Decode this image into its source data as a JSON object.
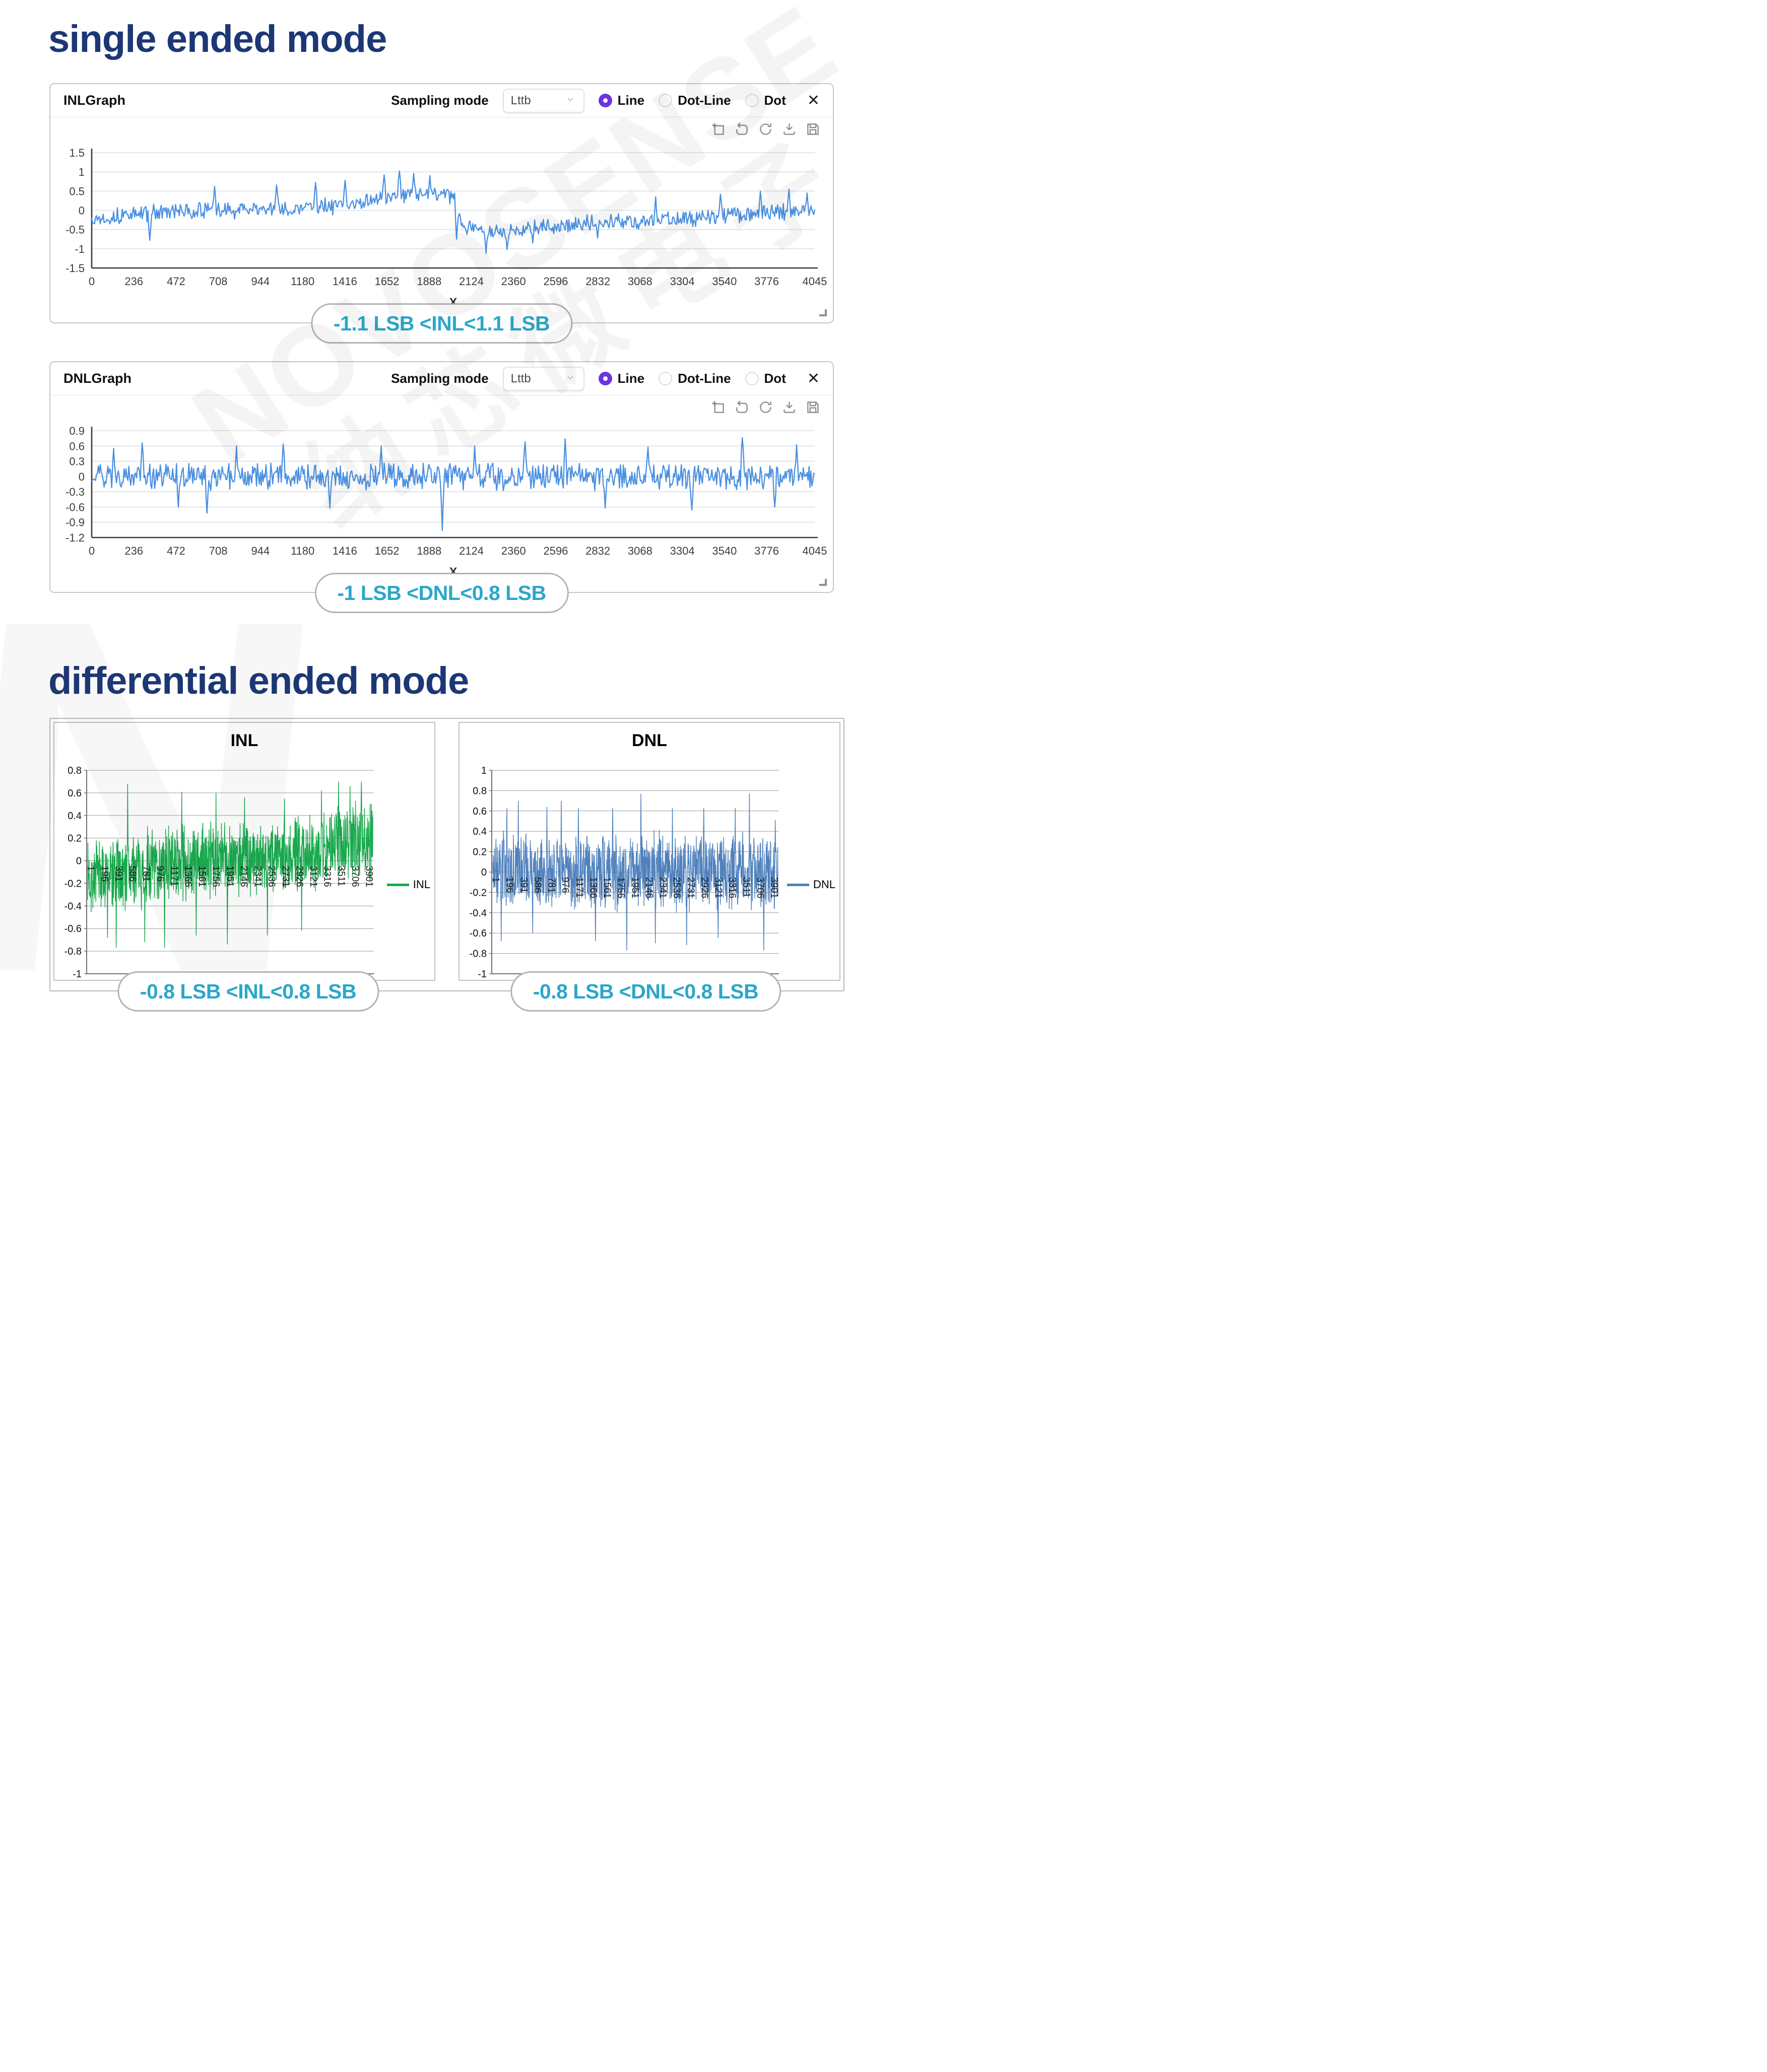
{
  "page": {
    "section1_title": "single ended mode",
    "section2_title": "differential ended mode",
    "watermark_line1": "NOVOSENSE",
    "watermark_line2": "纳芯微电子",
    "watermark_letter": "N"
  },
  "icons": {
    "close": "✕",
    "toolbar": [
      "zoom-box",
      "undo-zoom",
      "refresh",
      "download",
      "save"
    ]
  },
  "panels": [
    {
      "title": "INLGraph",
      "sampling_label": "Sampling mode",
      "dropdown_value": "Lttb",
      "radios": [
        {
          "label": "Line",
          "selected": true
        },
        {
          "label": "Dot-Line",
          "selected": false
        },
        {
          "label": "Dot",
          "selected": false
        }
      ],
      "caption": "-1.1 LSB <INL<1.1 LSB"
    },
    {
      "title": "DNLGraph",
      "sampling_label": "Sampling mode",
      "dropdown_value": "Lttb",
      "radios": [
        {
          "label": "Line",
          "selected": true
        },
        {
          "label": "Dot-Line",
          "selected": false
        },
        {
          "label": "Dot",
          "selected": false
        }
      ],
      "caption": "-1 LSB <DNL<0.8 LSB"
    }
  ],
  "diff": {
    "inl_caption": "-0.8 LSB <INL<0.8 LSB",
    "dnl_caption": "-0.8 LSB <DNL<0.8 LSB"
  },
  "chart_data": [
    {
      "id": "inl_top",
      "type": "line",
      "title": "INLGraph",
      "series_name": "INL",
      "color": "#4a90e2",
      "xlabel": "X",
      "xlim": [
        0,
        4045
      ],
      "x_ticks": [
        0,
        236,
        472,
        708,
        944,
        1180,
        1416,
        1652,
        1888,
        2124,
        2360,
        2596,
        2832,
        3068,
        3304,
        3540,
        3776,
        4045
      ],
      "ylim": [
        -1.5,
        1.5
      ],
      "y_ticks": [
        1.5,
        1,
        0.5,
        0,
        -0.5,
        -1,
        -1.5
      ],
      "grid": true,
      "legend_position": "none",
      "description": "INL noise: ~0±0.3 rising to +0.5 with peaks to 1.0 near x=1900, step down to -0.6 (lows -1.1) after x=2000, recovering toward 0 by x=4045",
      "series": {
        "points": 760,
        "seed": 13,
        "amplitude": 0.25,
        "clamp": [
          -1.15,
          1.05
        ],
        "base_points": [
          [
            0,
            -0.22
          ],
          [
            0.05,
            -0.12
          ],
          [
            0.1,
            -0.05
          ],
          [
            0.18,
            0.0
          ],
          [
            0.27,
            0.05
          ],
          [
            0.34,
            0.12
          ],
          [
            0.4,
            0.3
          ],
          [
            0.45,
            0.4
          ],
          [
            0.49,
            0.45
          ],
          [
            0.503,
            0.3
          ],
          [
            0.512,
            -0.45
          ],
          [
            0.54,
            -0.55
          ],
          [
            0.58,
            -0.55
          ],
          [
            0.63,
            -0.42
          ],
          [
            0.7,
            -0.32
          ],
          [
            0.78,
            -0.25
          ],
          [
            0.85,
            -0.18
          ],
          [
            0.92,
            -0.08
          ],
          [
            1,
            0.0
          ]
        ],
        "spikes": [
          [
            0.08,
            -0.78
          ],
          [
            0.17,
            0.62
          ],
          [
            0.255,
            0.66
          ],
          [
            0.31,
            0.72
          ],
          [
            0.35,
            0.78
          ],
          [
            0.405,
            0.92
          ],
          [
            0.425,
            1.02
          ],
          [
            0.445,
            0.96
          ],
          [
            0.468,
            0.9
          ],
          [
            0.505,
            -0.75
          ],
          [
            0.545,
            -1.12
          ],
          [
            0.575,
            -1.02
          ],
          [
            0.61,
            -0.85
          ],
          [
            0.7,
            -0.72
          ],
          [
            0.78,
            0.35
          ],
          [
            0.87,
            0.42
          ],
          [
            0.925,
            0.5
          ],
          [
            0.965,
            0.55
          ],
          [
            0.99,
            0.45
          ]
        ]
      }
    },
    {
      "id": "dnl_top",
      "type": "line",
      "title": "DNLGraph",
      "series_name": "DNL",
      "color": "#4a90e2",
      "xlabel": "X",
      "xlim": [
        0,
        4045
      ],
      "x_ticks": [
        0,
        236,
        472,
        708,
        944,
        1180,
        1416,
        1652,
        1888,
        2124,
        2360,
        2596,
        2832,
        3068,
        3304,
        3540,
        3776,
        4045
      ],
      "ylim": [
        -1.2,
        0.9
      ],
      "y_ticks": [
        0.9,
        0.6,
        0.3,
        0,
        -0.3,
        -0.6,
        -0.9,
        -1.2
      ],
      "grid": true,
      "legend_position": "none",
      "description": "DNL noise centered on 0, mostly ±0.45, spikes to +0.75 and one dip to -1.05 near x=1950",
      "series": {
        "points": 760,
        "seed": 29,
        "amplitude": 0.3,
        "clamp": [
          -1.1,
          0.78
        ],
        "base_points": [
          [
            0,
            0
          ],
          [
            1,
            0
          ]
        ],
        "spikes": [
          [
            0.03,
            0.55
          ],
          [
            0.07,
            0.66
          ],
          [
            0.12,
            -0.6
          ],
          [
            0.16,
            -0.72
          ],
          [
            0.2,
            0.6
          ],
          [
            0.265,
            0.64
          ],
          [
            0.33,
            -0.62
          ],
          [
            0.4,
            0.6
          ],
          [
            0.485,
            -1.06
          ],
          [
            0.53,
            0.6
          ],
          [
            0.6,
            0.68
          ],
          [
            0.655,
            0.74
          ],
          [
            0.71,
            -0.62
          ],
          [
            0.77,
            0.58
          ],
          [
            0.83,
            -0.66
          ],
          [
            0.9,
            0.76
          ],
          [
            0.945,
            -0.6
          ],
          [
            0.975,
            0.62
          ]
        ]
      }
    },
    {
      "id": "inl_diff",
      "type": "line",
      "title": "INL",
      "series_name": "INL",
      "color": "#18a94d",
      "x_categories": [
        1,
        196,
        391,
        586,
        781,
        976,
        1171,
        1366,
        1561,
        1756,
        1951,
        2146,
        2341,
        2536,
        2731,
        2926,
        3121,
        3316,
        3511,
        3706,
        3901
      ],
      "ylim": [
        -1,
        0.8
      ],
      "y_ticks": [
        0.8,
        0.6,
        0.4,
        0.2,
        0,
        -0.2,
        -0.4,
        -0.6,
        -0.8,
        -1
      ],
      "grid": true,
      "legend_position": "right",
      "description": "Differential INL noise, mean drifting -0.1 to +0.2, span roughly -0.77 to +0.7",
      "series": {
        "points": 1150,
        "seed": 7,
        "amplitude": 0.38,
        "clamp": [
          -0.78,
          0.7
        ],
        "base_points": [
          [
            0,
            -0.15
          ],
          [
            0.1,
            -0.12
          ],
          [
            0.2,
            -0.06
          ],
          [
            0.3,
            -0.02
          ],
          [
            0.4,
            0.0
          ],
          [
            0.5,
            0.03
          ],
          [
            0.6,
            0.05
          ],
          [
            0.7,
            0.05
          ],
          [
            0.8,
            0.1
          ],
          [
            0.9,
            0.16
          ],
          [
            1,
            0.18
          ]
        ],
        "spikes": [
          [
            0.07,
            -0.68
          ],
          [
            0.1,
            -0.77
          ],
          [
            0.14,
            0.68
          ],
          [
            0.2,
            -0.72
          ],
          [
            0.27,
            -0.77
          ],
          [
            0.33,
            0.61
          ],
          [
            0.38,
            -0.66
          ],
          [
            0.45,
            0.6
          ],
          [
            0.49,
            -0.74
          ],
          [
            0.55,
            0.56
          ],
          [
            0.63,
            -0.66
          ],
          [
            0.69,
            0.55
          ],
          [
            0.75,
            -0.62
          ],
          [
            0.82,
            0.62
          ],
          [
            0.88,
            0.7
          ],
          [
            0.92,
            0.66
          ],
          [
            0.96,
            0.7
          ],
          [
            0.99,
            0.5
          ]
        ]
      }
    },
    {
      "id": "dnl_diff",
      "type": "line",
      "title": "DNL",
      "series_name": "DNL",
      "color": "#4f81bd",
      "x_categories": [
        1,
        196,
        391,
        586,
        781,
        976,
        1171,
        1366,
        1561,
        1756,
        1951,
        2146,
        2341,
        2536,
        2731,
        2926,
        3121,
        3316,
        3511,
        3706,
        3901
      ],
      "ylim": [
        -1,
        1
      ],
      "y_ticks": [
        1,
        0.8,
        0.6,
        0.4,
        0.2,
        0,
        -0.2,
        -0.4,
        -0.6,
        -0.8,
        -1
      ],
      "grid": true,
      "legend_position": "right",
      "description": "Differential DNL noise centered on 0, mostly ±0.55, spikes to ±0.77",
      "series": {
        "points": 1150,
        "seed": 3,
        "amplitude": 0.42,
        "clamp": [
          -0.77,
          0.77
        ],
        "base_points": [
          [
            0,
            0
          ],
          [
            1,
            0
          ]
        ],
        "spikes": [
          [
            0.03,
            -0.68
          ],
          [
            0.05,
            0.63
          ],
          [
            0.09,
            0.7
          ],
          [
            0.14,
            -0.6
          ],
          [
            0.19,
            0.64
          ],
          [
            0.24,
            0.7
          ],
          [
            0.3,
            0.63
          ],
          [
            0.36,
            -0.68
          ],
          [
            0.42,
            0.63
          ],
          [
            0.47,
            -0.77
          ],
          [
            0.52,
            0.77
          ],
          [
            0.57,
            -0.7
          ],
          [
            0.63,
            0.63
          ],
          [
            0.68,
            -0.72
          ],
          [
            0.74,
            0.63
          ],
          [
            0.79,
            -0.65
          ],
          [
            0.85,
            0.63
          ],
          [
            0.9,
            0.77
          ],
          [
            0.95,
            -0.77
          ],
          [
            0.99,
            0.51
          ]
        ]
      }
    }
  ]
}
